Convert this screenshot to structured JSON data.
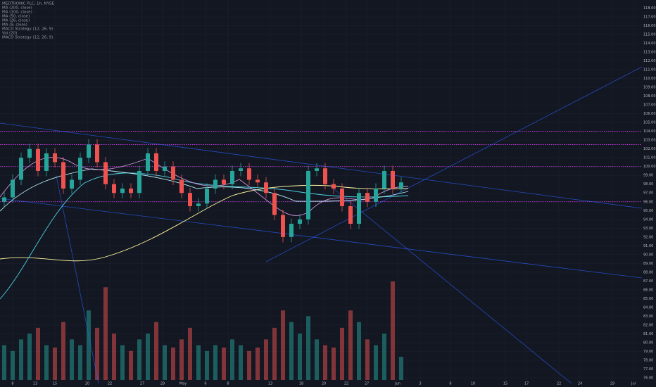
{
  "chart_data": {
    "type": "candlestick",
    "legend": [
      "MEDTRONIC PLC, 1h, NYSE",
      "MA (200, close)",
      "MA (100, close)",
      "MA (50, close)",
      "MA (26, close)",
      "MA (9, close)",
      "MACD Strategy (12, 26, 9)",
      "Vol (20)",
      "MACD Strategy (12, 26, 9)"
    ],
    "date_labels": [
      "8",
      "13",
      "15",
      "20",
      "22",
      "27",
      "29",
      "May",
      "6",
      "8",
      "13",
      "18",
      "20",
      "22",
      "27",
      "Jun",
      "3",
      "8",
      "10",
      "15",
      "17",
      "22",
      "24",
      "29",
      "Jul"
    ],
    "open": [
      96,
      96.5,
      98.5,
      101,
      102,
      99.5,
      101.5,
      100.5,
      97.5,
      98.5,
      101,
      102.5,
      100.5,
      98,
      97,
      97.5,
      97,
      99.5,
      101.5,
      99.5,
      100,
      98.5,
      97,
      95.5,
      95.8,
      97.5,
      98.5,
      98,
      99.5,
      99.8,
      98.5,
      98.2,
      97,
      94.5,
      92,
      93.5,
      94,
      99.5,
      99.8,
      98,
      97.5,
      95.5,
      93.5,
      97,
      96,
      97.5,
      99.5,
      97.5
    ],
    "high": [
      97.1,
      99.1,
      101.6,
      102.6,
      102.6,
      102.1,
      102.1,
      101.1,
      99.1,
      101.6,
      103.1,
      103.1,
      101.1,
      98.6,
      98.1,
      98.1,
      100.1,
      102.1,
      102.1,
      100.6,
      100.6,
      99.1,
      97.6,
      96.4,
      98.1,
      99.1,
      99.1,
      100.1,
      100.4,
      100.4,
      99.1,
      98.8,
      97.6,
      95.1,
      94.1,
      94.6,
      100.1,
      100.4,
      100.4,
      98.6,
      98.1,
      96.1,
      97.6,
      97.6,
      98.1,
      100.1,
      100.1,
      98.8
    ],
    "low": [
      95.4,
      95.9,
      97.9,
      100.4,
      98.9,
      98.9,
      99.9,
      96.9,
      96.9,
      97.9,
      100.4,
      99.9,
      97.4,
      96.4,
      96.4,
      96.4,
      96.4,
      98.9,
      98.9,
      98.9,
      97.9,
      96.4,
      94.9,
      94.9,
      95.2,
      96.9,
      97.4,
      97.4,
      98.9,
      97.9,
      97.6,
      96.4,
      93.9,
      91.4,
      91.4,
      92.9,
      93.4,
      98.9,
      97.4,
      96.9,
      94.9,
      92.9,
      92.9,
      95.4,
      95.4,
      96.9,
      96.9,
      96.9
    ],
    "close": [
      96.5,
      98.5,
      101,
      102,
      99.5,
      101.5,
      100.5,
      97.5,
      98.5,
      101,
      102.5,
      100.5,
      98,
      97,
      97.5,
      97,
      99.5,
      101.5,
      99.5,
      100,
      98.5,
      97,
      95.5,
      95.8,
      97.5,
      98.5,
      98,
      99.5,
      99.8,
      98.5,
      98.2,
      97,
      94.5,
      92,
      93.5,
      94,
      99.5,
      99.8,
      98,
      97.5,
      95.5,
      93.5,
      97,
      96,
      97.5,
      99.5,
      97.5,
      98.2
    ],
    "volume": [
      30,
      25,
      35,
      40,
      45,
      30,
      28,
      50,
      35,
      30,
      60,
      45,
      80,
      40,
      30,
      25,
      35,
      40,
      50,
      30,
      28,
      35,
      45,
      30,
      25,
      30,
      28,
      35,
      30,
      25,
      28,
      35,
      45,
      60,
      50,
      40,
      55,
      35,
      30,
      28,
      45,
      60,
      50,
      35,
      30,
      40,
      85,
      20
    ],
    "levels": [
      104,
      102.5,
      100,
      96
    ],
    "up_color": "#26a69a",
    "down_color": "#ef5350",
    "ylim": [
      75.2,
      118.6
    ],
    "yticks": [
      {
        "value": 76,
        "label": "76.00"
      },
      {
        "value": 77,
        "label": "77.00"
      },
      {
        "value": 78,
        "label": "78.00"
      },
      {
        "value": 79,
        "label": "79.00"
      },
      {
        "value": 80,
        "label": "80.00"
      },
      {
        "value": 81,
        "label": "81.00"
      },
      {
        "value": 82,
        "label": "82.00"
      },
      {
        "value": 83,
        "label": "83.00"
      },
      {
        "value": 84,
        "label": "84.00"
      },
      {
        "value": 85,
        "label": "85.00"
      },
      {
        "value": 86,
        "label": "86.00"
      },
      {
        "value": 87,
        "label": "87.00"
      },
      {
        "value": 88,
        "label": "88.00"
      },
      {
        "value": 89,
        "label": "89.00"
      },
      {
        "value": 90,
        "label": "90.00"
      },
      {
        "value": 91,
        "label": "91.00"
      },
      {
        "value": 92,
        "label": "92.00"
      },
      {
        "value": 93,
        "label": "93.00"
      },
      {
        "value": 94,
        "label": "94.00"
      },
      {
        "value": 95,
        "label": "95.00"
      },
      {
        "value": 96,
        "label": "96.00"
      },
      {
        "value": 97,
        "label": "97.00"
      },
      {
        "value": 98,
        "label": "98.00"
      },
      {
        "value": 99,
        "label": "99.00"
      },
      {
        "value": 100,
        "label": "100.00"
      },
      {
        "value": 101,
        "label": "101.00"
      },
      {
        "value": 102,
        "label": "102.00"
      },
      {
        "value": 103,
        "label": "103.00"
      },
      {
        "value": 104,
        "label": "104.00"
      },
      {
        "value": 105,
        "label": "105.00"
      },
      {
        "value": 106,
        "label": "106.00"
      },
      {
        "value": 107,
        "label": "107.00"
      },
      {
        "value": 108,
        "label": "108.00"
      },
      {
        "value": 109,
        "label": "109.00"
      },
      {
        "value": 110,
        "label": "110.00"
      },
      {
        "value": 111,
        "label": "111.00"
      },
      {
        "value": 112,
        "label": "112.00"
      },
      {
        "value": 113,
        "label": "113.00"
      },
      {
        "value": 114,
        "label": "114.00"
      },
      {
        "value": 115,
        "label": "115.00"
      },
      {
        "value": 116,
        "label": "116.00"
      },
      {
        "value": 117,
        "label": "117.00"
      },
      {
        "value": 118,
        "label": "118.00"
      }
    ],
    "grid": true
  }
}
